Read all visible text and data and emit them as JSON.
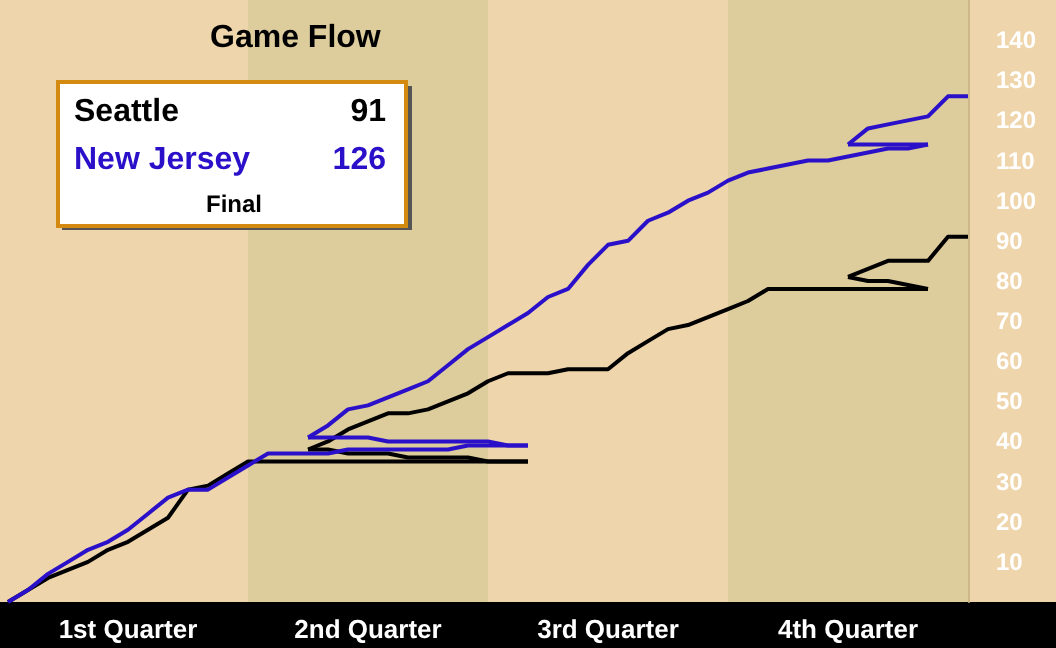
{
  "chart_data": {
    "type": "line",
    "title": "Game Flow",
    "categories": [
      null,
      null,
      null,
      null,
      null,
      null,
      "1st Quarter",
      null,
      null,
      null,
      null,
      null,
      null,
      null,
      null,
      null,
      null,
      null,
      "2nd Quarter",
      null,
      null,
      null,
      null,
      null,
      null,
      null,
      null,
      null,
      null,
      null,
      "3rd Quarter",
      null,
      null,
      null,
      null,
      null,
      null,
      null,
      null,
      null,
      null,
      null,
      "4th Quarter",
      null,
      null,
      null,
      null,
      null,
      null
    ],
    "ylim": [
      0,
      150
    ],
    "yticks": [
      10,
      20,
      30,
      40,
      50,
      60,
      70,
      80,
      90,
      100,
      110,
      120,
      130,
      140
    ],
    "legend": "top left",
    "marker": "none",
    "line_style": "solid",
    "grid": false,
    "annotations": [
      "91",
      "126",
      "Final"
    ],
    "series": [
      {
        "name": "Seattle",
        "color": "#000000",
        "values": [
          0,
          3,
          6,
          8,
          10,
          13,
          15,
          18,
          21,
          28,
          29,
          32,
          35,
          35,
          35,
          35,
          35,
          35,
          35,
          35,
          35,
          35,
          35,
          35,
          35,
          35,
          35,
          null,
          null,
          null,
          null,
          null,
          null,
          null,
          null,
          null,
          null,
          null,
          null,
          null,
          null,
          null,
          null,
          null,
          null,
          null,
          null,
          null,
          null
        ]
      },
      {
        "color": "#000000",
        "values": [
          null,
          null,
          null,
          null,
          null,
          null,
          null,
          null,
          null,
          null,
          null,
          null,
          null,
          null,
          null,
          38,
          38,
          37,
          37,
          37,
          36,
          36,
          36,
          36,
          35,
          35,
          35,
          null,
          null,
          null,
          null,
          null,
          null,
          null,
          null,
          null,
          null,
          null,
          null,
          null,
          null,
          null,
          null,
          null,
          null,
          null,
          null,
          null,
          null
        ]
      },
      {
        "color": "#000000",
        "values": [
          null,
          null,
          null,
          null,
          null,
          null,
          null,
          null,
          null,
          null,
          null,
          null,
          null,
          null,
          null,
          38,
          40,
          43,
          45,
          47,
          47,
          48,
          50,
          52,
          55,
          57,
          57,
          57,
          58,
          58,
          58,
          62,
          65,
          68,
          69,
          71,
          73,
          75,
          78,
          78,
          78,
          78,
          78,
          78,
          78,
          78,
          78,
          null,
          null
        ]
      },
      {
        "color": "#000000",
        "values": [
          null,
          null,
          null,
          null,
          null,
          null,
          null,
          null,
          null,
          null,
          null,
          null,
          null,
          null,
          null,
          null,
          null,
          null,
          null,
          null,
          null,
          null,
          null,
          null,
          null,
          null,
          null,
          null,
          null,
          null,
          null,
          null,
          null,
          null,
          null,
          null,
          null,
          null,
          null,
          null,
          null,
          null,
          81,
          80,
          80,
          79,
          78,
          null,
          null
        ]
      },
      {
        "color": "#000000",
        "values": [
          null,
          null,
          null,
          null,
          null,
          null,
          null,
          null,
          null,
          null,
          null,
          null,
          null,
          null,
          null,
          null,
          null,
          null,
          null,
          null,
          null,
          null,
          null,
          null,
          null,
          null,
          null,
          null,
          null,
          null,
          null,
          null,
          null,
          null,
          null,
          null,
          null,
          null,
          null,
          null,
          null,
          null,
          81,
          83,
          85,
          85,
          85,
          91,
          91
        ]
      },
      {
        "name": "New Jersey",
        "color": "#2a10c8",
        "values": [
          0,
          3,
          7,
          10,
          13,
          15,
          18,
          22,
          26,
          28,
          28,
          31,
          34,
          37,
          37,
          37,
          37,
          38,
          38,
          38,
          38,
          38,
          38,
          39,
          39,
          39,
          39,
          null,
          null,
          null,
          null,
          null,
          null,
          null,
          null,
          null,
          null,
          null,
          null,
          null,
          null,
          null,
          null,
          null,
          null,
          null,
          null,
          null,
          null
        ]
      },
      {
        "color": "#2a10c8",
        "values": [
          null,
          null,
          null,
          null,
          null,
          null,
          null,
          null,
          null,
          null,
          null,
          null,
          null,
          null,
          null,
          41,
          41,
          41,
          41,
          40,
          40,
          40,
          40,
          40,
          40,
          39,
          39,
          null,
          null,
          null,
          null,
          null,
          null,
          null,
          null,
          null,
          null,
          null,
          null,
          null,
          null,
          null,
          null,
          null,
          null,
          null,
          null,
          null,
          null
        ]
      },
      {
        "color": "#2a10c8",
        "values": [
          null,
          null,
          null,
          null,
          null,
          null,
          null,
          null,
          null,
          null,
          null,
          null,
          null,
          null,
          null,
          41,
          44,
          48,
          49,
          51,
          53,
          55,
          59,
          63,
          66,
          69,
          72,
          76,
          78,
          84,
          89,
          90,
          95,
          97,
          100,
          102,
          105,
          107,
          108,
          109,
          110,
          110,
          111,
          112,
          113,
          113,
          114,
          null,
          null
        ]
      },
      {
        "color": "#2a10c8",
        "values": [
          null,
          null,
          null,
          null,
          null,
          null,
          null,
          null,
          null,
          null,
          null,
          null,
          null,
          null,
          null,
          null,
          null,
          null,
          null,
          null,
          null,
          null,
          null,
          null,
          null,
          null,
          null,
          null,
          null,
          null,
          null,
          null,
          null,
          null,
          null,
          null,
          null,
          null,
          null,
          null,
          null,
          null,
          114,
          114,
          114,
          114,
          114,
          null,
          null
        ]
      },
      {
        "color": "#2a10c8",
        "values": [
          null,
          null,
          null,
          null,
          null,
          null,
          null,
          null,
          null,
          null,
          null,
          null,
          null,
          null,
          null,
          null,
          null,
          null,
          null,
          null,
          null,
          null,
          null,
          null,
          null,
          null,
          null,
          null,
          null,
          null,
          null,
          null,
          null,
          null,
          null,
          null,
          null,
          null,
          null,
          null,
          null,
          null,
          114,
          118,
          119,
          120,
          121,
          126,
          126
        ]
      }
    ]
  }
}
